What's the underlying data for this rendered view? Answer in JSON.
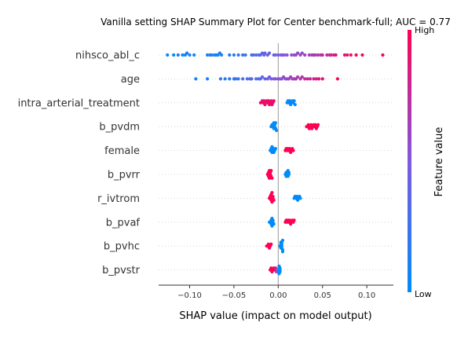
{
  "chart_data": {
    "type": "scatter",
    "subtype": "shap-beeswarm",
    "title": "Vanilla setting SHAP Summary Plot for Center benchmark-full; AUC = 0.77",
    "xlabel": "SHAP value (impact on model output)",
    "xlim": [
      -0.135,
      0.13
    ],
    "xticks": [
      -0.1,
      -0.05,
      0.0,
      0.05,
      0.1
    ],
    "xtick_labels": [
      "−0.10",
      "−0.05",
      "0.00",
      "0.05",
      "0.10"
    ],
    "colorbar": {
      "label": "Feature value",
      "high": "High",
      "low": "Low",
      "low_color": "#008bfb",
      "high_color": "#ff0052"
    },
    "features": [
      {
        "name": "nihsco_abl_c",
        "points": [
          [
            -0.125,
            0.1
          ],
          [
            -0.118,
            0.0
          ],
          [
            -0.113,
            0.2
          ],
          [
            -0.108,
            0.05
          ],
          [
            -0.105,
            0.0
          ],
          [
            -0.103,
            0.1
          ],
          [
            -0.1,
            0.15
          ],
          [
            -0.095,
            0.05
          ],
          [
            -0.08,
            0.1
          ],
          [
            -0.077,
            0.05
          ],
          [
            -0.075,
            0.15
          ],
          [
            -0.072,
            0.1
          ],
          [
            -0.07,
            0.2
          ],
          [
            -0.068,
            0.0
          ],
          [
            -0.066,
            0.1
          ],
          [
            -0.064,
            0.15
          ],
          [
            -0.055,
            0.15
          ],
          [
            -0.05,
            0.2
          ],
          [
            -0.045,
            0.25
          ],
          [
            -0.04,
            0.2
          ],
          [
            -0.037,
            0.25
          ],
          [
            -0.03,
            0.3
          ],
          [
            -0.028,
            0.3
          ],
          [
            -0.025,
            0.35
          ],
          [
            -0.022,
            0.3
          ],
          [
            -0.02,
            0.35
          ],
          [
            -0.018,
            0.4
          ],
          [
            -0.016,
            0.35
          ],
          [
            -0.015,
            0.4
          ],
          [
            -0.012,
            0.45
          ],
          [
            -0.01,
            0.4
          ],
          [
            -0.005,
            0.45
          ],
          [
            -0.003,
            0.4
          ],
          [
            0.0,
            0.45
          ],
          [
            0.003,
            0.5
          ],
          [
            0.005,
            0.5
          ],
          [
            0.007,
            0.5
          ],
          [
            0.01,
            0.55
          ],
          [
            0.015,
            0.55
          ],
          [
            0.018,
            0.6
          ],
          [
            0.02,
            0.55
          ],
          [
            0.022,
            0.6
          ],
          [
            0.025,
            0.6
          ],
          [
            0.027,
            0.55
          ],
          [
            0.03,
            0.6
          ],
          [
            0.035,
            0.65
          ],
          [
            0.038,
            0.65
          ],
          [
            0.04,
            0.7
          ],
          [
            0.042,
            0.65
          ],
          [
            0.045,
            0.7
          ],
          [
            0.048,
            0.7
          ],
          [
            0.05,
            0.75
          ],
          [
            0.055,
            0.75
          ],
          [
            0.058,
            0.8
          ],
          [
            0.06,
            0.8
          ],
          [
            0.063,
            0.85
          ],
          [
            0.065,
            0.85
          ],
          [
            0.075,
            0.9
          ],
          [
            0.078,
            0.9
          ],
          [
            0.082,
            0.9
          ],
          [
            0.088,
            0.95
          ],
          [
            0.095,
            0.95
          ],
          [
            0.118,
            1.0
          ]
        ]
      },
      {
        "name": "age",
        "points": [
          [
            -0.093,
            0.05
          ],
          [
            -0.08,
            0.1
          ],
          [
            -0.065,
            0.15
          ],
          [
            -0.06,
            0.15
          ],
          [
            -0.055,
            0.2
          ],
          [
            -0.05,
            0.2
          ],
          [
            -0.048,
            0.2
          ],
          [
            -0.045,
            0.25
          ],
          [
            -0.04,
            0.25
          ],
          [
            -0.035,
            0.3
          ],
          [
            -0.032,
            0.3
          ],
          [
            -0.03,
            0.35
          ],
          [
            -0.025,
            0.35
          ],
          [
            -0.022,
            0.3
          ],
          [
            -0.02,
            0.4
          ],
          [
            -0.018,
            0.35
          ],
          [
            -0.015,
            0.4
          ],
          [
            -0.012,
            0.45
          ],
          [
            -0.01,
            0.45
          ],
          [
            -0.008,
            0.5
          ],
          [
            -0.005,
            0.5
          ],
          [
            -0.003,
            0.5
          ],
          [
            0.0,
            0.55
          ],
          [
            0.002,
            0.5
          ],
          [
            0.004,
            0.55
          ],
          [
            0.006,
            0.6
          ],
          [
            0.008,
            0.55
          ],
          [
            0.01,
            0.6
          ],
          [
            0.012,
            0.6
          ],
          [
            0.014,
            0.65
          ],
          [
            0.016,
            0.6
          ],
          [
            0.018,
            0.65
          ],
          [
            0.02,
            0.7
          ],
          [
            0.022,
            0.65
          ],
          [
            0.025,
            0.7
          ],
          [
            0.027,
            0.7
          ],
          [
            0.03,
            0.75
          ],
          [
            0.033,
            0.75
          ],
          [
            0.036,
            0.8
          ],
          [
            0.04,
            0.8
          ],
          [
            0.043,
            0.85
          ],
          [
            0.046,
            0.85
          ],
          [
            0.05,
            0.9
          ],
          [
            0.067,
            0.95
          ]
        ]
      },
      {
        "name": "intra_arterial_treatment",
        "points": [
          [
            -0.02,
            0.95
          ],
          [
            -0.018,
            0.9
          ],
          [
            -0.017,
            0.95
          ],
          [
            -0.016,
            0.9
          ],
          [
            -0.015,
            0.95
          ],
          [
            -0.014,
            0.9
          ],
          [
            -0.013,
            0.95
          ],
          [
            -0.012,
            0.9
          ],
          [
            -0.011,
            0.95
          ],
          [
            -0.01,
            0.9
          ],
          [
            -0.009,
            0.95
          ],
          [
            -0.008,
            0.9
          ],
          [
            -0.007,
            0.95
          ],
          [
            -0.006,
            0.9
          ],
          [
            -0.005,
            0.95
          ],
          [
            0.01,
            0.05
          ],
          [
            0.011,
            0.0
          ],
          [
            0.012,
            0.05
          ],
          [
            0.013,
            0.0
          ],
          [
            0.014,
            0.05
          ],
          [
            0.015,
            0.0
          ],
          [
            0.016,
            0.05
          ],
          [
            0.017,
            0.0
          ],
          [
            0.018,
            0.05
          ],
          [
            0.019,
            0.0
          ]
        ]
      },
      {
        "name": "b_pvdm",
        "points": [
          [
            -0.008,
            0.0
          ],
          [
            -0.007,
            0.0
          ],
          [
            -0.006,
            0.0
          ],
          [
            -0.006,
            0.0
          ],
          [
            -0.005,
            0.0
          ],
          [
            -0.005,
            0.0
          ],
          [
            -0.004,
            0.0
          ],
          [
            -0.004,
            0.0
          ],
          [
            -0.003,
            0.0
          ],
          [
            -0.003,
            0.0
          ],
          [
            -0.002,
            0.0
          ],
          [
            0.032,
            1.0
          ],
          [
            0.033,
            1.0
          ],
          [
            0.034,
            1.0
          ],
          [
            0.035,
            1.0
          ],
          [
            0.036,
            1.0
          ],
          [
            0.037,
            1.0
          ],
          [
            0.038,
            1.0
          ],
          [
            0.039,
            1.0
          ],
          [
            0.04,
            1.0
          ],
          [
            0.041,
            1.0
          ],
          [
            0.042,
            1.0
          ],
          [
            0.043,
            1.0
          ],
          [
            0.044,
            1.0
          ],
          [
            0.045,
            1.0
          ]
        ]
      },
      {
        "name": "female",
        "points": [
          [
            -0.009,
            0.0
          ],
          [
            -0.008,
            0.0
          ],
          [
            -0.007,
            0.0
          ],
          [
            -0.007,
            0.0
          ],
          [
            -0.006,
            0.0
          ],
          [
            -0.005,
            0.0
          ],
          [
            -0.005,
            0.0
          ],
          [
            -0.004,
            0.0
          ],
          [
            -0.003,
            0.0
          ],
          [
            0.008,
            1.0
          ],
          [
            0.009,
            1.0
          ],
          [
            0.01,
            1.0
          ],
          [
            0.011,
            1.0
          ],
          [
            0.012,
            1.0
          ],
          [
            0.013,
            1.0
          ],
          [
            0.014,
            1.0
          ],
          [
            0.015,
            1.0
          ],
          [
            0.016,
            1.0
          ],
          [
            0.017,
            1.0
          ]
        ]
      },
      {
        "name": "b_pvrr",
        "points": [
          [
            -0.012,
            1.0
          ],
          [
            -0.011,
            1.0
          ],
          [
            -0.011,
            1.0
          ],
          [
            -0.01,
            1.0
          ],
          [
            -0.01,
            1.0
          ],
          [
            -0.009,
            1.0
          ],
          [
            -0.009,
            1.0
          ],
          [
            -0.008,
            1.0
          ],
          [
            -0.008,
            1.0
          ],
          [
            -0.007,
            1.0
          ],
          [
            0.008,
            0.0
          ],
          [
            0.009,
            0.0
          ],
          [
            0.009,
            0.0
          ],
          [
            0.01,
            0.0
          ],
          [
            0.01,
            0.0
          ],
          [
            0.011,
            0.0
          ],
          [
            0.011,
            0.0
          ],
          [
            0.012,
            0.0
          ],
          [
            0.012,
            0.0
          ]
        ]
      },
      {
        "name": "r_ivtrom",
        "points": [
          [
            -0.01,
            1.0
          ],
          [
            -0.009,
            1.0
          ],
          [
            -0.009,
            1.0
          ],
          [
            -0.008,
            1.0
          ],
          [
            -0.008,
            1.0
          ],
          [
            -0.007,
            1.0
          ],
          [
            -0.007,
            1.0
          ],
          [
            -0.006,
            1.0
          ],
          [
            -0.006,
            1.0
          ],
          [
            -0.005,
            1.0
          ],
          [
            0.018,
            0.0
          ],
          [
            0.019,
            0.0
          ],
          [
            0.02,
            0.0
          ],
          [
            0.021,
            0.0
          ],
          [
            0.022,
            0.0
          ],
          [
            0.023,
            0.0
          ],
          [
            0.024,
            0.0
          ],
          [
            0.025,
            0.0
          ]
        ]
      },
      {
        "name": "b_pvaf",
        "points": [
          [
            -0.01,
            0.0
          ],
          [
            -0.009,
            0.0
          ],
          [
            -0.008,
            0.0
          ],
          [
            -0.008,
            0.0
          ],
          [
            -0.007,
            0.0
          ],
          [
            -0.007,
            0.0
          ],
          [
            -0.006,
            0.0
          ],
          [
            -0.006,
            0.0
          ],
          [
            -0.005,
            0.0
          ],
          [
            0.008,
            1.0
          ],
          [
            0.009,
            1.0
          ],
          [
            0.01,
            1.0
          ],
          [
            0.011,
            1.0
          ],
          [
            0.012,
            1.0
          ],
          [
            0.013,
            1.0
          ],
          [
            0.014,
            1.0
          ],
          [
            0.015,
            1.0
          ],
          [
            0.016,
            1.0
          ],
          [
            0.017,
            1.0
          ],
          [
            0.018,
            1.0
          ]
        ]
      },
      {
        "name": "b_pvhc",
        "points": [
          [
            -0.013,
            1.0
          ],
          [
            -0.012,
            1.0
          ],
          [
            -0.011,
            1.0
          ],
          [
            -0.01,
            1.0
          ],
          [
            -0.009,
            1.0
          ],
          [
            -0.008,
            1.0
          ],
          [
            0.002,
            0.0
          ],
          [
            0.003,
            0.0
          ],
          [
            0.003,
            0.0
          ],
          [
            0.003,
            0.0
          ],
          [
            0.004,
            0.0
          ],
          [
            0.004,
            0.0
          ],
          [
            0.004,
            0.0
          ],
          [
            0.004,
            0.0
          ],
          [
            0.005,
            0.0
          ],
          [
            0.005,
            0.0
          ],
          [
            0.005,
            0.0
          ]
        ]
      },
      {
        "name": "b_pvstr",
        "points": [
          [
            -0.009,
            1.0
          ],
          [
            -0.008,
            1.0
          ],
          [
            -0.007,
            1.0
          ],
          [
            -0.006,
            1.0
          ],
          [
            -0.005,
            1.0
          ],
          [
            -0.004,
            1.0
          ],
          [
            -0.003,
            0.8
          ],
          [
            -0.002,
            0.6
          ],
          [
            0.0,
            0.0
          ],
          [
            0.001,
            0.0
          ],
          [
            0.001,
            0.0
          ],
          [
            0.001,
            0.0
          ],
          [
            0.001,
            0.0
          ],
          [
            0.002,
            0.0
          ],
          [
            0.002,
            0.0
          ],
          [
            0.002,
            0.0
          ]
        ]
      }
    ]
  }
}
